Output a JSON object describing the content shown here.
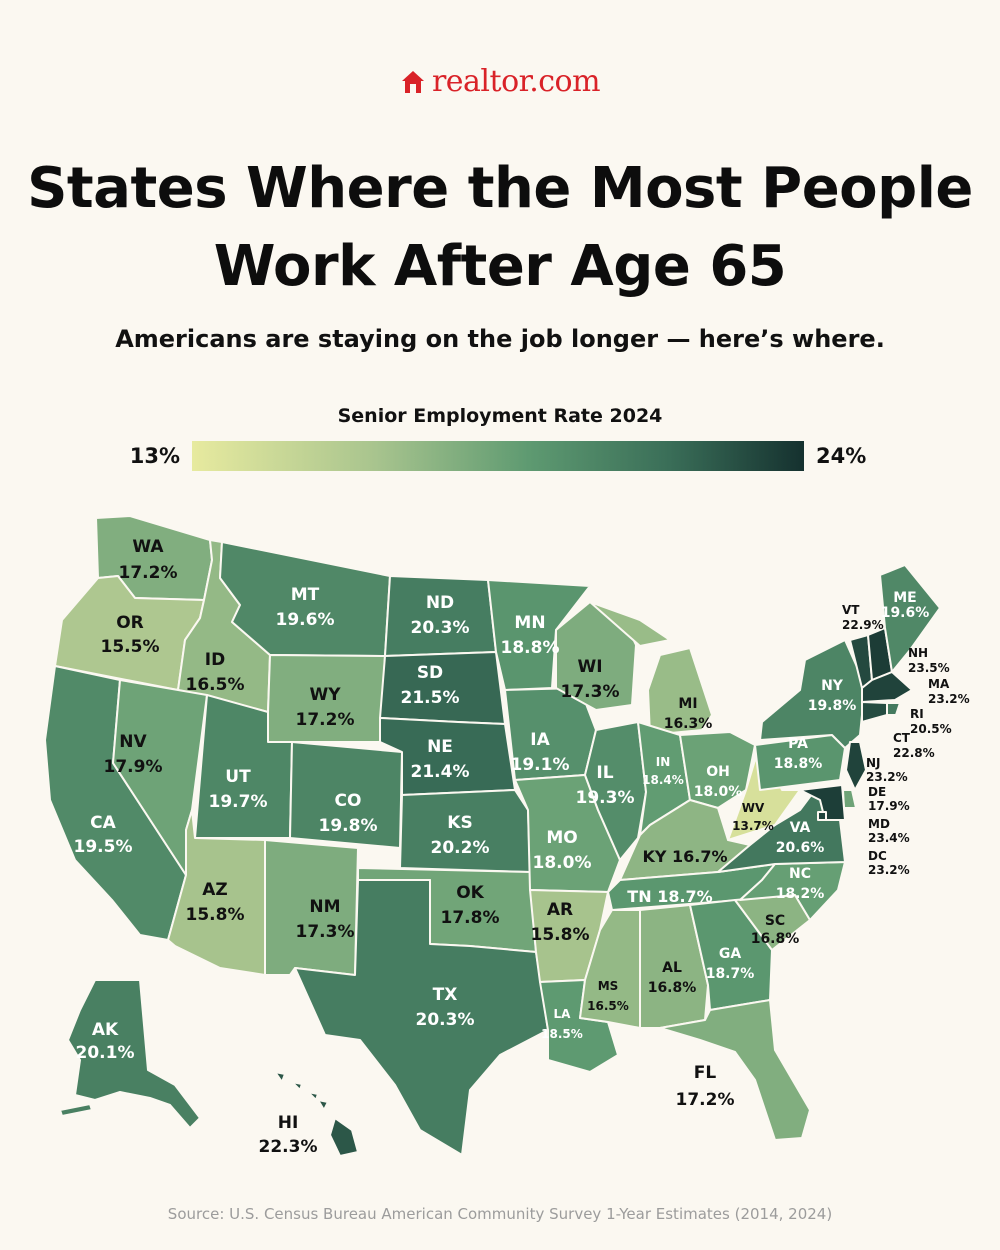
{
  "brand": {
    "name": "realtor.com",
    "accent": "#d92228"
  },
  "title": "States Where the Most People Work After Age 65",
  "subtitle": "Americans are staying on the job longer — here’s where.",
  "legend": {
    "title": "Senior Employment Rate 2024",
    "min_label": "13%",
    "max_label": "24%",
    "min": 13,
    "max": 24,
    "colors": [
      "#e7ea9f",
      "#a8c48e",
      "#5e9a71",
      "#3a6e58",
      "#15312f"
    ]
  },
  "states": [
    {
      "abbr": "WA",
      "value": 17.2,
      "label": "17.2%"
    },
    {
      "abbr": "OR",
      "value": 15.5,
      "label": "15.5%"
    },
    {
      "abbr": "CA",
      "value": 19.5,
      "label": "19.5%"
    },
    {
      "abbr": "ID",
      "value": 16.5,
      "label": "16.5%"
    },
    {
      "abbr": "NV",
      "value": 17.9,
      "label": "17.9%"
    },
    {
      "abbr": "MT",
      "value": 19.6,
      "label": "19.6%"
    },
    {
      "abbr": "WY",
      "value": 17.2,
      "label": "17.2%"
    },
    {
      "abbr": "UT",
      "value": 19.7,
      "label": "19.7%"
    },
    {
      "abbr": "AZ",
      "value": 15.8,
      "label": "15.8%"
    },
    {
      "abbr": "CO",
      "value": 19.8,
      "label": "19.8%"
    },
    {
      "abbr": "NM",
      "value": 17.3,
      "label": "17.3%"
    },
    {
      "abbr": "ND",
      "value": 20.3,
      "label": "20.3%"
    },
    {
      "abbr": "SD",
      "value": 21.5,
      "label": "21.5%"
    },
    {
      "abbr": "NE",
      "value": 21.4,
      "label": "21.4%"
    },
    {
      "abbr": "KS",
      "value": 20.2,
      "label": "20.2%"
    },
    {
      "abbr": "OK",
      "value": 17.8,
      "label": "17.8%"
    },
    {
      "abbr": "TX",
      "value": 20.3,
      "label": "20.3%"
    },
    {
      "abbr": "MN",
      "value": 18.8,
      "label": "18.8%"
    },
    {
      "abbr": "IA",
      "value": 19.1,
      "label": "19.1%"
    },
    {
      "abbr": "MO",
      "value": 18.0,
      "label": "18.0%"
    },
    {
      "abbr": "AR",
      "value": 15.8,
      "label": "15.8%"
    },
    {
      "abbr": "LA",
      "value": 18.5,
      "label": "18.5%"
    },
    {
      "abbr": "WI",
      "value": 17.3,
      "label": "17.3%"
    },
    {
      "abbr": "IL",
      "value": 19.3,
      "label": "19.3%"
    },
    {
      "abbr": "MI",
      "value": 16.3,
      "label": "16.3%"
    },
    {
      "abbr": "IN",
      "value": 18.4,
      "label": "18.4%"
    },
    {
      "abbr": "OH",
      "value": 18.0,
      "label": "18.0%"
    },
    {
      "abbr": "KY",
      "value": 16.7,
      "label": "16.7%"
    },
    {
      "abbr": "TN",
      "value": 18.7,
      "label": "18.7%"
    },
    {
      "abbr": "MS",
      "value": 16.5,
      "label": "16.5%"
    },
    {
      "abbr": "AL",
      "value": 16.8,
      "label": "16.8%"
    },
    {
      "abbr": "GA",
      "value": 18.7,
      "label": "18.7%"
    },
    {
      "abbr": "FL",
      "value": 17.2,
      "label": "17.2%"
    },
    {
      "abbr": "SC",
      "value": 16.8,
      "label": "16.8%"
    },
    {
      "abbr": "NC",
      "value": 18.2,
      "label": "18.2%"
    },
    {
      "abbr": "VA",
      "value": 20.6,
      "label": "20.6%"
    },
    {
      "abbr": "WV",
      "value": 13.7,
      "label": "13.7%"
    },
    {
      "abbr": "PA",
      "value": 18.8,
      "label": "18.8%"
    },
    {
      "abbr": "NY",
      "value": 19.8,
      "label": "19.8%"
    },
    {
      "abbr": "VT",
      "value": 22.9,
      "label": "22.9%"
    },
    {
      "abbr": "NH",
      "value": 23.5,
      "label": "23.5%"
    },
    {
      "abbr": "ME",
      "value": 19.6,
      "label": "19.6%"
    },
    {
      "abbr": "MA",
      "value": 23.2,
      "label": "23.2%"
    },
    {
      "abbr": "RI",
      "value": 20.5,
      "label": "20.5%"
    },
    {
      "abbr": "CT",
      "value": 22.8,
      "label": "22.8%"
    },
    {
      "abbr": "NJ",
      "value": 23.2,
      "label": "23.2%"
    },
    {
      "abbr": "DE",
      "value": 17.9,
      "label": "17.9%"
    },
    {
      "abbr": "MD",
      "value": 23.4,
      "label": "23.4%"
    },
    {
      "abbr": "DC",
      "value": 23.2,
      "label": "23.2%"
    },
    {
      "abbr": "AK",
      "value": 20.1,
      "label": "20.1%"
    },
    {
      "abbr": "HI",
      "value": 22.3,
      "label": "22.3%"
    }
  ],
  "source": "Source: U.S. Census Bureau American Community Survey 1-Year Estimates (2014, 2024)"
}
